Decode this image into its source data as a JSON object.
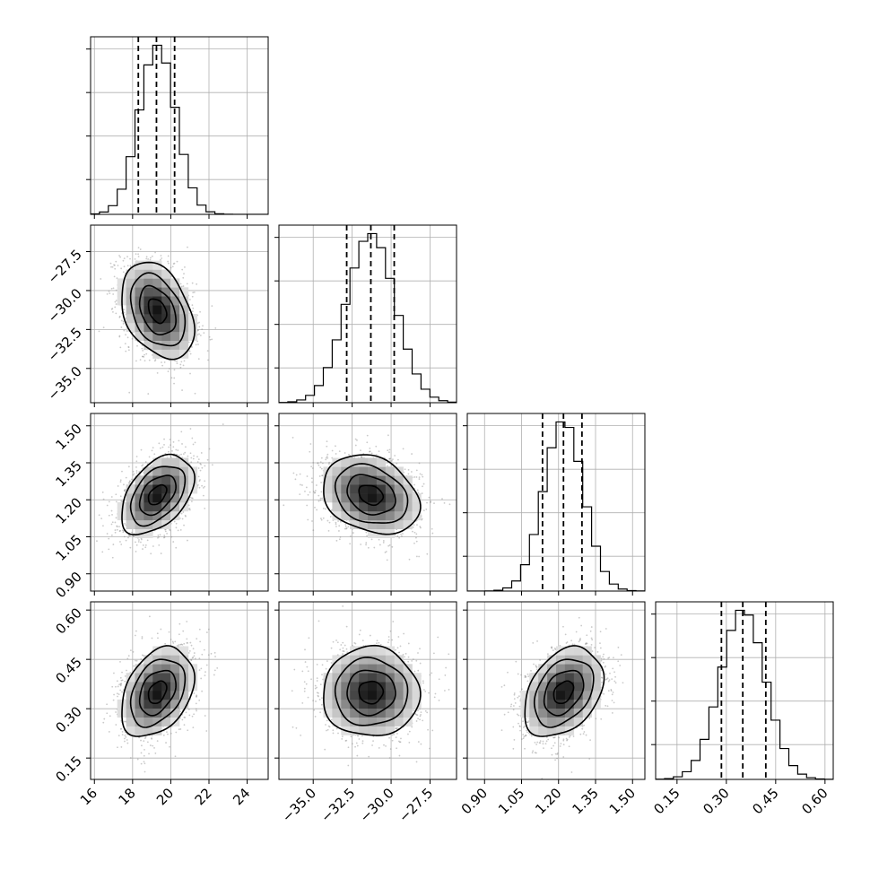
{
  "chart_data": {
    "type": "corner",
    "parameters": [
      {
        "range": [
          15.8,
          25.1
        ],
        "ticks": [
          "16",
          "18",
          "20",
          "22",
          "24"
        ],
        "tick_values": [
          16,
          18,
          20,
          22,
          24
        ],
        "quantiles": [
          18.3,
          19.25,
          20.2
        ],
        "mean": 19.3,
        "std": 0.95
      },
      {
        "range": [
          -37.2,
          -25.8
        ],
        "ticks": [
          "−35.0",
          "−32.5",
          "−30.0",
          "−27.5"
        ],
        "tick_values": [
          -35.0,
          -32.5,
          -30.0,
          -27.5
        ],
        "quantiles": [
          -32.85,
          -31.3,
          -29.8
        ],
        "mean": -31.3,
        "std": 1.55
      },
      {
        "range": [
          0.83,
          1.55
        ],
        "ticks": [
          "0.90",
          "1.05",
          "1.20",
          "1.35",
          "1.50"
        ],
        "tick_values": [
          0.9,
          1.05,
          1.2,
          1.35,
          1.5
        ],
        "quantiles": [
          1.135,
          1.22,
          1.295
        ],
        "mean": 1.22,
        "std": 0.08
      },
      {
        "range": [
          0.085,
          0.625
        ],
        "ticks": [
          "0.15",
          "0.30",
          "0.45",
          "0.60"
        ],
        "tick_values": [
          0.15,
          0.3,
          0.45,
          0.6
        ],
        "quantiles": [
          0.285,
          0.35,
          0.42
        ],
        "mean": 0.35,
        "std": 0.068
      }
    ],
    "correlations": [
      [
        1.0,
        -0.35,
        0.45,
        0.35
      ],
      [
        -0.35,
        1.0,
        -0.25,
        0.0
      ],
      [
        0.45,
        -0.25,
        1.0,
        0.35
      ],
      [
        0.35,
        0.0,
        0.35,
        1.0
      ]
    ],
    "grid": true,
    "hist_bins": 20
  }
}
